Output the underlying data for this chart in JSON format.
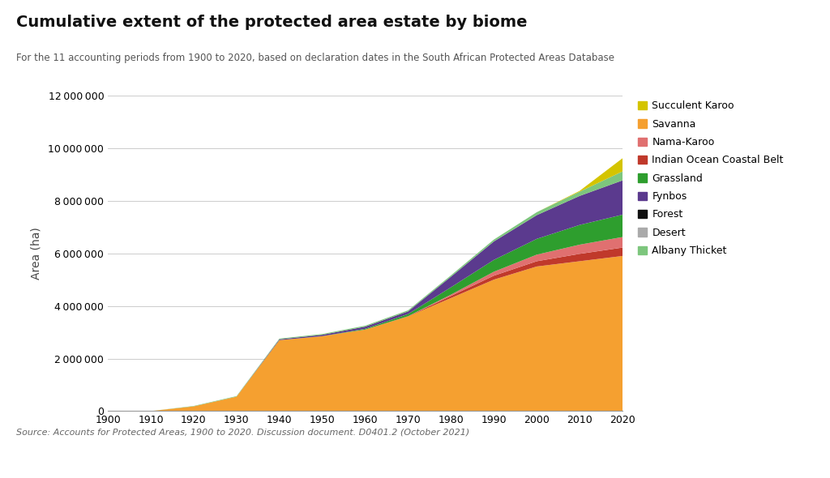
{
  "years": [
    1900,
    1910,
    1920,
    1930,
    1940,
    1950,
    1960,
    1970,
    1980,
    1990,
    2000,
    2010,
    2020
  ],
  "title": "Cumulative extent of the protected area estate by biome",
  "subtitle": "For the 11 accounting periods from 1900 to 2020, based on declaration dates in the South African Protected Areas Database",
  "ylabel": "Area (ha)",
  "source_text": "Source: Accounts for Protected Areas, 1900 to 2020. Discussion document. D0401.2 (October 2021)",
  "ylim_max": 12000000,
  "yticks": [
    0,
    2000000,
    4000000,
    6000000,
    8000000,
    10000000,
    12000000
  ],
  "xticks": [
    1900,
    1910,
    1920,
    1930,
    1940,
    1950,
    1960,
    1970,
    1980,
    1990,
    2000,
    2010,
    2020
  ],
  "colors": {
    "Succulent Karoo": "#d4c400",
    "Albany Thicket": "#7dc67d",
    "Desert": "#aaaaaa",
    "Forest": "#111111",
    "Fynbos": "#5b3a8e",
    "Grassland": "#2e9e2e",
    "Indian Ocean Coastal Belt": "#c0392b",
    "Nama-Karoo": "#e07070",
    "Savanna": "#f5a030"
  },
  "stack_order": [
    "Savanna",
    "Indian Ocean Coastal Belt",
    "Nama-Karoo",
    "Grassland",
    "Fynbos",
    "Forest",
    "Albany Thicket",
    "Succulent Karoo"
  ],
  "legend_order": [
    "Succulent Karoo",
    "Savanna",
    "Nama-Karoo",
    "Indian Ocean Coastal Belt",
    "Grassland",
    "Fynbos",
    "Forest",
    "Desert",
    "Albany Thicket"
  ],
  "data": {
    "Savanna": [
      0,
      400,
      180000,
      550000,
      2700000,
      2850000,
      3100000,
      3600000,
      4300000,
      5000000,
      5500000,
      5700000,
      5900000
    ],
    "Indian Ocean Coastal Belt": [
      0,
      0,
      0,
      0,
      0,
      0,
      0,
      10000,
      80000,
      150000,
      200000,
      280000,
      320000
    ],
    "Nama-Karoo": [
      0,
      0,
      0,
      0,
      0,
      0,
      0,
      0,
      50000,
      150000,
      250000,
      350000,
      400000
    ],
    "Grassland": [
      0,
      0,
      0,
      0,
      0,
      0,
      30000,
      80000,
      280000,
      450000,
      600000,
      750000,
      850000
    ],
    "Fynbos": [
      0,
      0,
      0,
      0,
      30000,
      50000,
      80000,
      100000,
      400000,
      700000,
      900000,
      1100000,
      1300000
    ],
    "Forest": [
      0,
      0,
      0,
      0,
      3000,
      3000,
      3000,
      3000,
      3000,
      3000,
      4000,
      5000,
      6000
    ],
    "Albany Thicket": [
      0,
      0,
      15000,
      20000,
      25000,
      30000,
      35000,
      40000,
      50000,
      70000,
      110000,
      160000,
      340000
    ],
    "Succulent Karoo": [
      0,
      0,
      0,
      0,
      0,
      0,
      0,
      0,
      0,
      0,
      0,
      30000,
      500000
    ],
    "Desert": [
      0,
      0,
      0,
      0,
      0,
      0,
      0,
      0,
      0,
      0,
      0,
      0,
      0
    ]
  },
  "background_color": "#ffffff"
}
